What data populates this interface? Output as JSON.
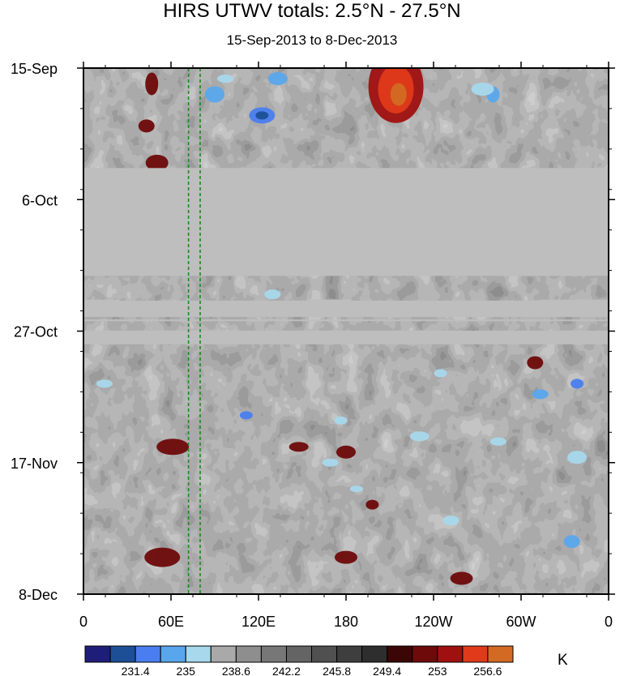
{
  "chart_data": {
    "type": "heatmap",
    "title": "HIRS UTWV totals: 2.5°N - 27.5°N",
    "subtitle": "15-Sep-2013 to 8-Dec-2013",
    "x_axis": {
      "ticks": [
        "0",
        "60E",
        "120E",
        "180",
        "120W",
        "60W",
        "0"
      ]
    },
    "y_axis": {
      "ticks": [
        "15-Sep",
        "6-Oct",
        "27-Oct",
        "17-Nov",
        "8-Dec"
      ]
    },
    "colorbar": {
      "unit": "K",
      "labels": [
        "231.4",
        "235",
        "238.6",
        "242.2",
        "245.8",
        "249.4",
        "253",
        "256.6"
      ],
      "colors": [
        "#1e1e7a",
        "#1c4f96",
        "#4a7ef0",
        "#5aa6ec",
        "#a8d8ec",
        "#a9a9a9",
        "#8e8e8e",
        "#777777",
        "#646464",
        "#505050",
        "#3e3e3e",
        "#2e2e2e",
        "#3a0606",
        "#6e0a0a",
        "#a01010",
        "#e03a1a",
        "#d26a24"
      ]
    },
    "missing_data_bands": [
      "2013-10-04 to 2013-10-21",
      "2013-10-25 to 2013-10-27",
      "2013-10-29 to 2013-10-30"
    ],
    "reference_lines_longitude": [
      "72E",
      "80E"
    ]
  }
}
